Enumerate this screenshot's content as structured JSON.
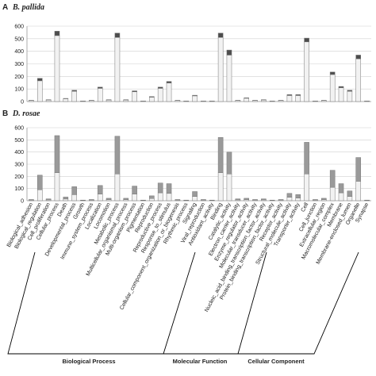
{
  "chart_data": [
    {
      "type": "bar",
      "title": "A",
      "subtitle": "B. pallida",
      "stacked": true,
      "grid": true,
      "ylim": [
        0,
        600
      ],
      "yticks": [
        0,
        100,
        200,
        300,
        400,
        500,
        600
      ],
      "series": [
        {
          "color": "#f2f2f2",
          "values": [
            8,
            165,
            12,
            525,
            22,
            82,
            4,
            8,
            105,
            12,
            510,
            12,
            78,
            4,
            35,
            105,
            148,
            8,
            4,
            45,
            4,
            4,
            510,
            370,
            8,
            26,
            8,
            12,
            4,
            8,
            48,
            48,
            475,
            4,
            8,
            215,
            110,
            82,
            340,
            4
          ]
        },
        {
          "color": "#4d4d4d",
          "values": [
            2,
            20,
            3,
            35,
            3,
            8,
            1,
            2,
            10,
            3,
            35,
            3,
            7,
            1,
            5,
            10,
            12,
            2,
            1,
            5,
            1,
            1,
            35,
            40,
            2,
            4,
            2,
            3,
            1,
            2,
            7,
            7,
            30,
            1,
            2,
            20,
            10,
            8,
            30,
            1
          ]
        }
      ]
    },
    {
      "type": "bar",
      "title": "B",
      "subtitle": "D. rosae",
      "stacked": true,
      "grid": true,
      "ylim": [
        0,
        600
      ],
      "yticks": [
        0,
        100,
        200,
        300,
        400,
        500,
        600
      ],
      "categories": [
        "Biological_adhesion",
        "Biological_regulation",
        "Cell_proliferation",
        "Cellular_process",
        "Death",
        "Developmental_process",
        "Growth",
        "Immune_system_process",
        "Localization",
        "Locomotion",
        "Metabolic_process",
        "Multicellular_organismal_process",
        "Multi-organism_process",
        "Pigmentation",
        "Reproduction",
        "Reproductive_process",
        "Response_to_stimulus",
        "Cellular_component_organization_or_biogenesis",
        "Rhythmic_process",
        "Signaling",
        "Viral_reproduction",
        "Antioxidant_activity",
        "Binding",
        "Catalytic_activity",
        "Electron_carrier_activity",
        "Enzyme_regulator_activity",
        "Molecular_transducer_activity",
        "Nucleic_acid_binding_transcription_factor_activity",
        "Protein_binding_transcription_factor_activity",
        "Receptor_activity",
        "Structural_molecule_activity",
        "Transporter_activity",
        "Cell",
        "Cell_junction",
        "Extracellular_region",
        "Macromolecular_complex",
        "Membrane",
        "Membrane-enclosed_lumen",
        "Organelle",
        "Synapse"
      ],
      "series": [
        {
          "color": "#f2f2f2",
          "values": [
            5,
            90,
            7,
            230,
            14,
            50,
            2,
            5,
            55,
            9,
            220,
            9,
            55,
            2,
            18,
            65,
            60,
            5,
            2,
            35,
            5,
            2,
            230,
            220,
            7,
            9,
            5,
            7,
            2,
            5,
            28,
            22,
            220,
            5,
            9,
            110,
            65,
            35,
            160,
            2
          ]
        },
        {
          "color": "#9a9a9a",
          "values": [
            5,
            120,
            8,
            305,
            16,
            65,
            3,
            5,
            70,
            11,
            310,
            11,
            65,
            3,
            22,
            80,
            80,
            5,
            3,
            40,
            5,
            3,
            290,
            180,
            8,
            11,
            5,
            8,
            3,
            5,
            32,
            28,
            260,
            5,
            11,
            140,
            75,
            45,
            195,
            3
          ]
        }
      ],
      "groups": [
        "Biological Process",
        "Molecular Function",
        "Cellular Component"
      ]
    }
  ]
}
